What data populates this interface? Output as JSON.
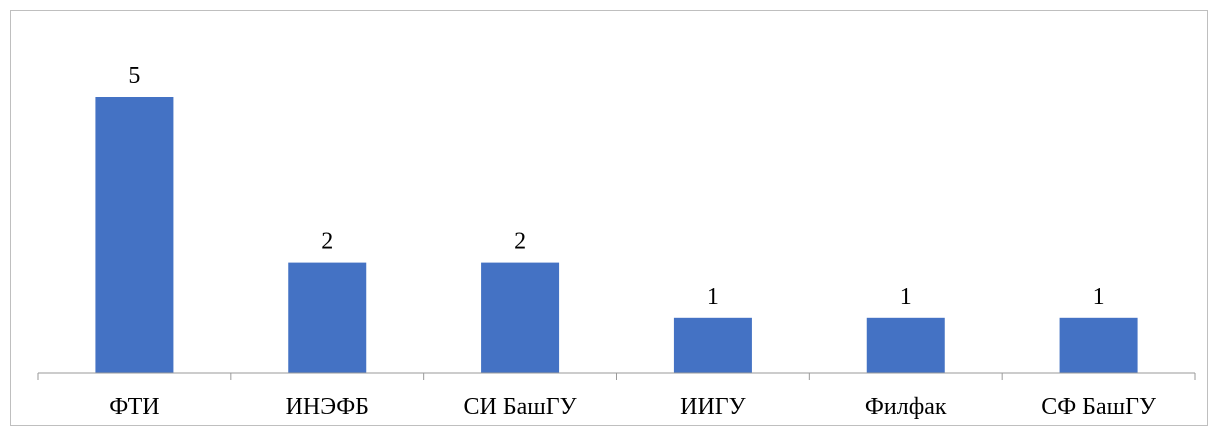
{
  "chart_data": {
    "type": "bar",
    "categories": [
      "ФТИ",
      "ИНЭФБ",
      "СИ БашГУ",
      "ИИГУ",
      "Филфак",
      "СФ БашГУ"
    ],
    "values": [
      5,
      2,
      2,
      1,
      1,
      1
    ],
    "data_labels": [
      "5",
      "2",
      "2",
      "1",
      "1",
      "1"
    ],
    "title": "",
    "xlabel": "",
    "ylabel": "",
    "ylim": [
      0,
      5
    ],
    "grid": false,
    "legend": "none",
    "bar_color": "#4472c4",
    "axis_color": "#9a9a9a",
    "frame_color": "#bfbfbf"
  }
}
